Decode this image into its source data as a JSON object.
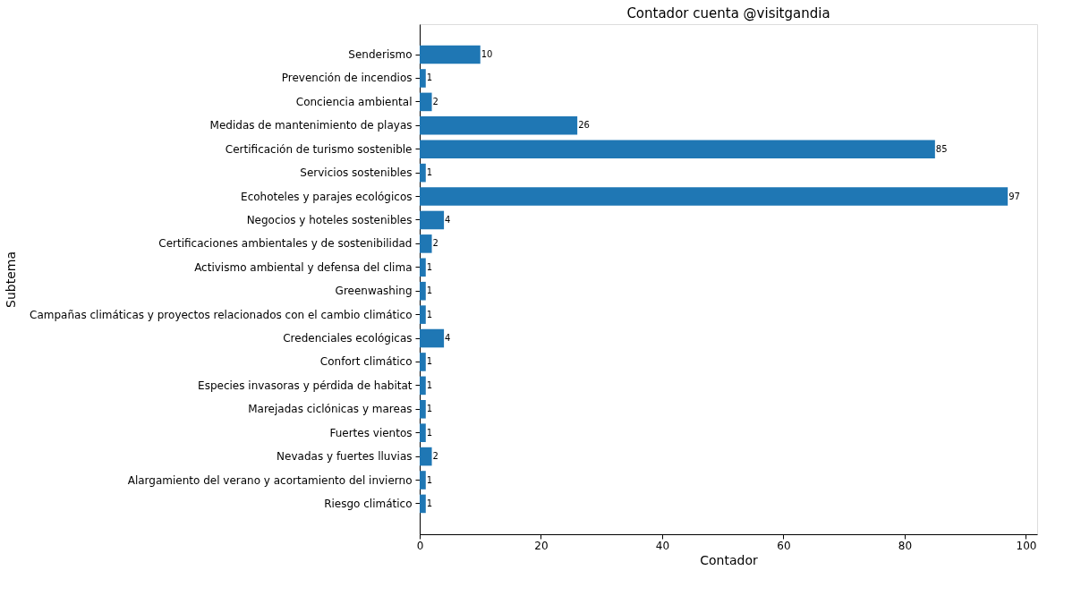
{
  "chart_data": {
    "type": "bar",
    "orientation": "horizontal",
    "title": "Contador cuenta @visitgandia",
    "xlabel": "Contador",
    "ylabel": "Subtema",
    "categories": [
      "Senderismo",
      "Prevención de incendios",
      "Conciencia ambiental",
      "Medidas de mantenimiento de playas",
      "Certificación de turismo sostenible",
      "Servicios sostenibles",
      "Ecohoteles y parajes ecológicos",
      "Negocios y hoteles sostenibles",
      "Certificaciones ambientales y de sostenibilidad",
      "Activismo ambiental y defensa del clima",
      "Greenwashing",
      "Campañas climáticas y proyectos relacionados con el cambio climático",
      "Credenciales ecológicas",
      "Confort climático",
      "Especies invasoras y pérdida de habitat",
      "Marejadas ciclónicas y mareas",
      "Fuertes vientos",
      "Nevadas y fuertes lluvias",
      "Alargamiento del verano y acortamiento del invierno",
      "Riesgo climático"
    ],
    "values": [
      10,
      1,
      2,
      26,
      85,
      1,
      97,
      4,
      2,
      1,
      1,
      1,
      4,
      1,
      1,
      1,
      1,
      2,
      1,
      1
    ],
    "color": "#1f77b4",
    "xlim": [
      0,
      101.85
    ],
    "xticks": [
      0,
      20,
      40,
      60,
      80,
      100
    ],
    "data_labels": true,
    "grid": false
  }
}
